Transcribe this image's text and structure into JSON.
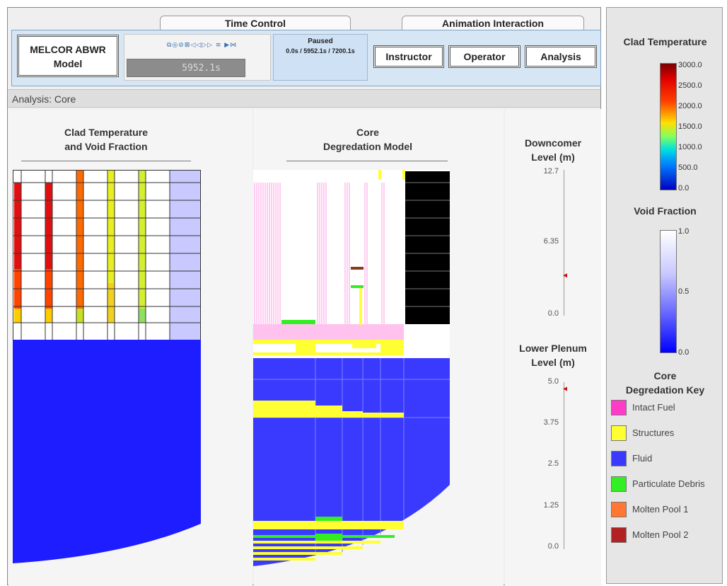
{
  "tabs": {
    "time_control": "Time Control",
    "animation_interaction": "Animation Interaction"
  },
  "model": {
    "line1": "MELCOR ABWR",
    "line2": "Model"
  },
  "player": {
    "transport_icons": "⧉◎⊘⊠◁◁▷▷ ≡ ▶⋈",
    "time": "5952.1s"
  },
  "status": {
    "state": "Paused",
    "range": "0.0s / 5952.1s / 7200.1s"
  },
  "modes": [
    "Instructor",
    "Operator",
    "Analysis"
  ],
  "analysis_bar": "Analysis: Core",
  "clad_panel": {
    "title1": "Clad Temperature",
    "title2": "and Void Fraction"
  },
  "core_panel": {
    "title1": "Core",
    "title2": "Degredation Model"
  },
  "downcomer": {
    "title1": "Downcomer",
    "title2": "Level (m)",
    "ticks": [
      "12.7",
      "6.35",
      "0.0"
    ],
    "min": 0.0,
    "max": 12.7,
    "value": 3.5
  },
  "lower_plenum": {
    "title1": "Lower Plenum",
    "title2": "Level (m)",
    "ticks": [
      "5.0",
      "3.75",
      "2.5",
      "1.25",
      "0.0"
    ],
    "min": 0.0,
    "max": 5.0,
    "value": 4.8
  },
  "sidebar": {
    "clad_title": "Clad Temperature",
    "clad_ticks": [
      "3000.0",
      "2500.0",
      "2000.0",
      "1500.0",
      "1000.0",
      "500.0",
      "0.0"
    ],
    "void_title": "Void Fraction",
    "void_ticks": [
      "1.0",
      "0.5",
      "0.0"
    ],
    "key_title1": "Core",
    "key_title2": "Degredation Key",
    "key": [
      {
        "label": "Intact Fuel",
        "color": "#ff3cc8"
      },
      {
        "label": "Structures",
        "color": "#ffff33"
      },
      {
        "label": "Fluid",
        "color": "#3a3aff"
      },
      {
        "label": "Particulate Debris",
        "color": "#33ee22"
      },
      {
        "label": "Molten Pool 1",
        "color": "#ff7733"
      },
      {
        "label": "Molten Pool 2",
        "color": "#b22222"
      }
    ]
  },
  "colors": {
    "fluid": "#1d1dff",
    "fuel": "#ff80dd",
    "structure": "#ffff33",
    "debris": "#33ee22",
    "molten2": "#8b3a1a",
    "void_high": "#c9c9ff",
    "debris_black": "#000000"
  }
}
